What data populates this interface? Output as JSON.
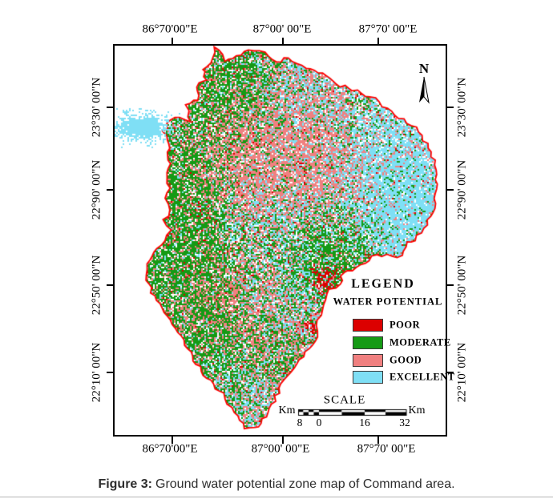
{
  "figure_caption": {
    "label": "Figure 3:",
    "text": "Ground water potential zone map of Command area."
  },
  "axis": {
    "top": [
      "86°70'00\"E",
      "87°00' 00\"E",
      "87°70' 00\"E"
    ],
    "bottom": [
      "86°70'00\"E",
      "87°00' 00\"E",
      "87°70' 00\"E"
    ],
    "left": [
      "23°30' 00\"N",
      "22°90' 00\"N",
      "22°50' 00\"N",
      "22°10' 00\"N"
    ],
    "right": [
      "23°30' 00\"N",
      "22°90' 00\"N",
      "22°50' 00\"N",
      "22°10' 00\"N"
    ]
  },
  "north_arrow_label": "N",
  "legend": {
    "title": "LEGEND",
    "subtitle": "WATER POTENTIAL",
    "items": [
      {
        "label": "POOR",
        "color": "#DC0000"
      },
      {
        "label": "MODERATE",
        "color": "#159A15"
      },
      {
        "label": "GOOD",
        "color": "#F08080"
      },
      {
        "label": "EXCELLENT",
        "color": "#7FDFF5"
      }
    ]
  },
  "scale_bar": {
    "title": "SCALE",
    "unit_left": "Km",
    "unit_right": "Km",
    "labels": [
      "8",
      "0",
      "16",
      "32"
    ]
  },
  "map_colors": {
    "boundary": "#FF0000",
    "water_body": "#7FDFF5",
    "background": "#FFFFFF"
  }
}
